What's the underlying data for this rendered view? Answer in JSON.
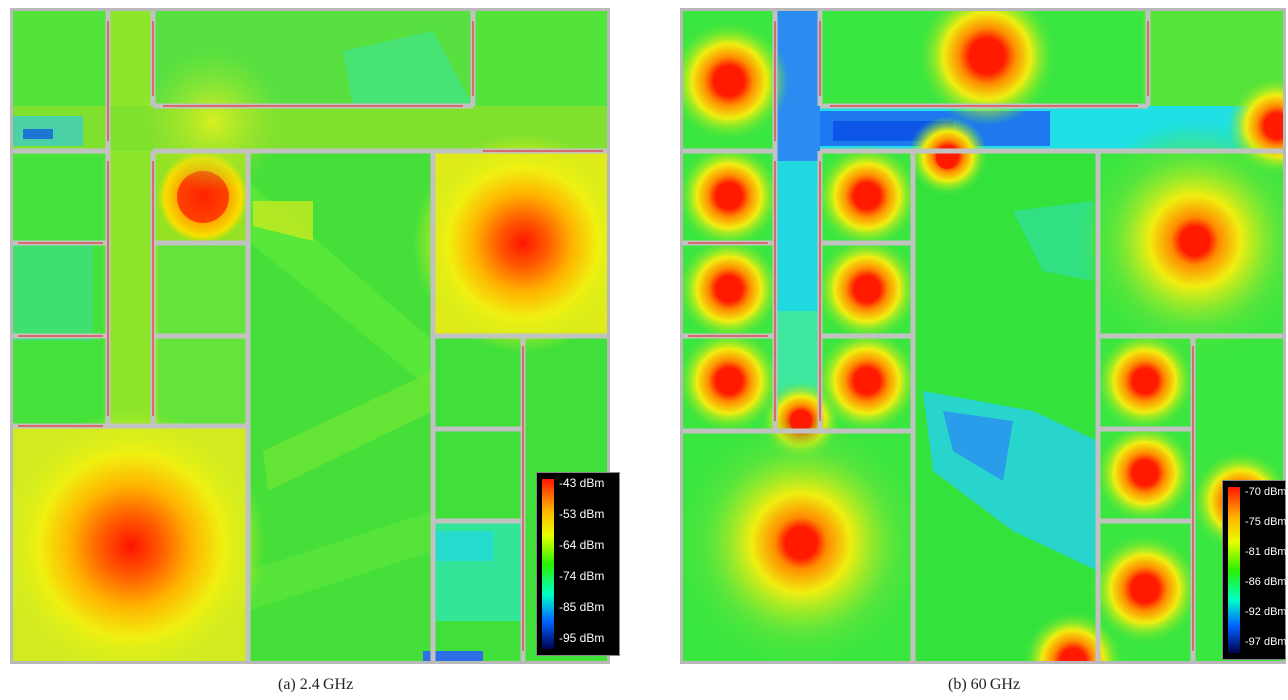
{
  "panel_a": {
    "caption": "(a)  2.4 GHz",
    "legend_labels": [
      "-43 dBm",
      "-53 dBm",
      "-64 dBm",
      "-74 dBm",
      "-85 dBm",
      "-95 dBm"
    ]
  },
  "panel_b": {
    "caption": "(b)  60 GHz",
    "legend_labels": [
      "-70 dBm",
      "-75 dBm",
      "-81 dBm",
      "-86 dBm",
      "-92 dBm",
      "-97 dBm"
    ]
  },
  "colors": {
    "hot": "#ff1a00",
    "warm": "#f2ee10",
    "mid": "#3ee63c",
    "cold": "#00e6f0",
    "deep": "#0050e6",
    "wall": "#c0c0c0",
    "door": "#e05050"
  }
}
